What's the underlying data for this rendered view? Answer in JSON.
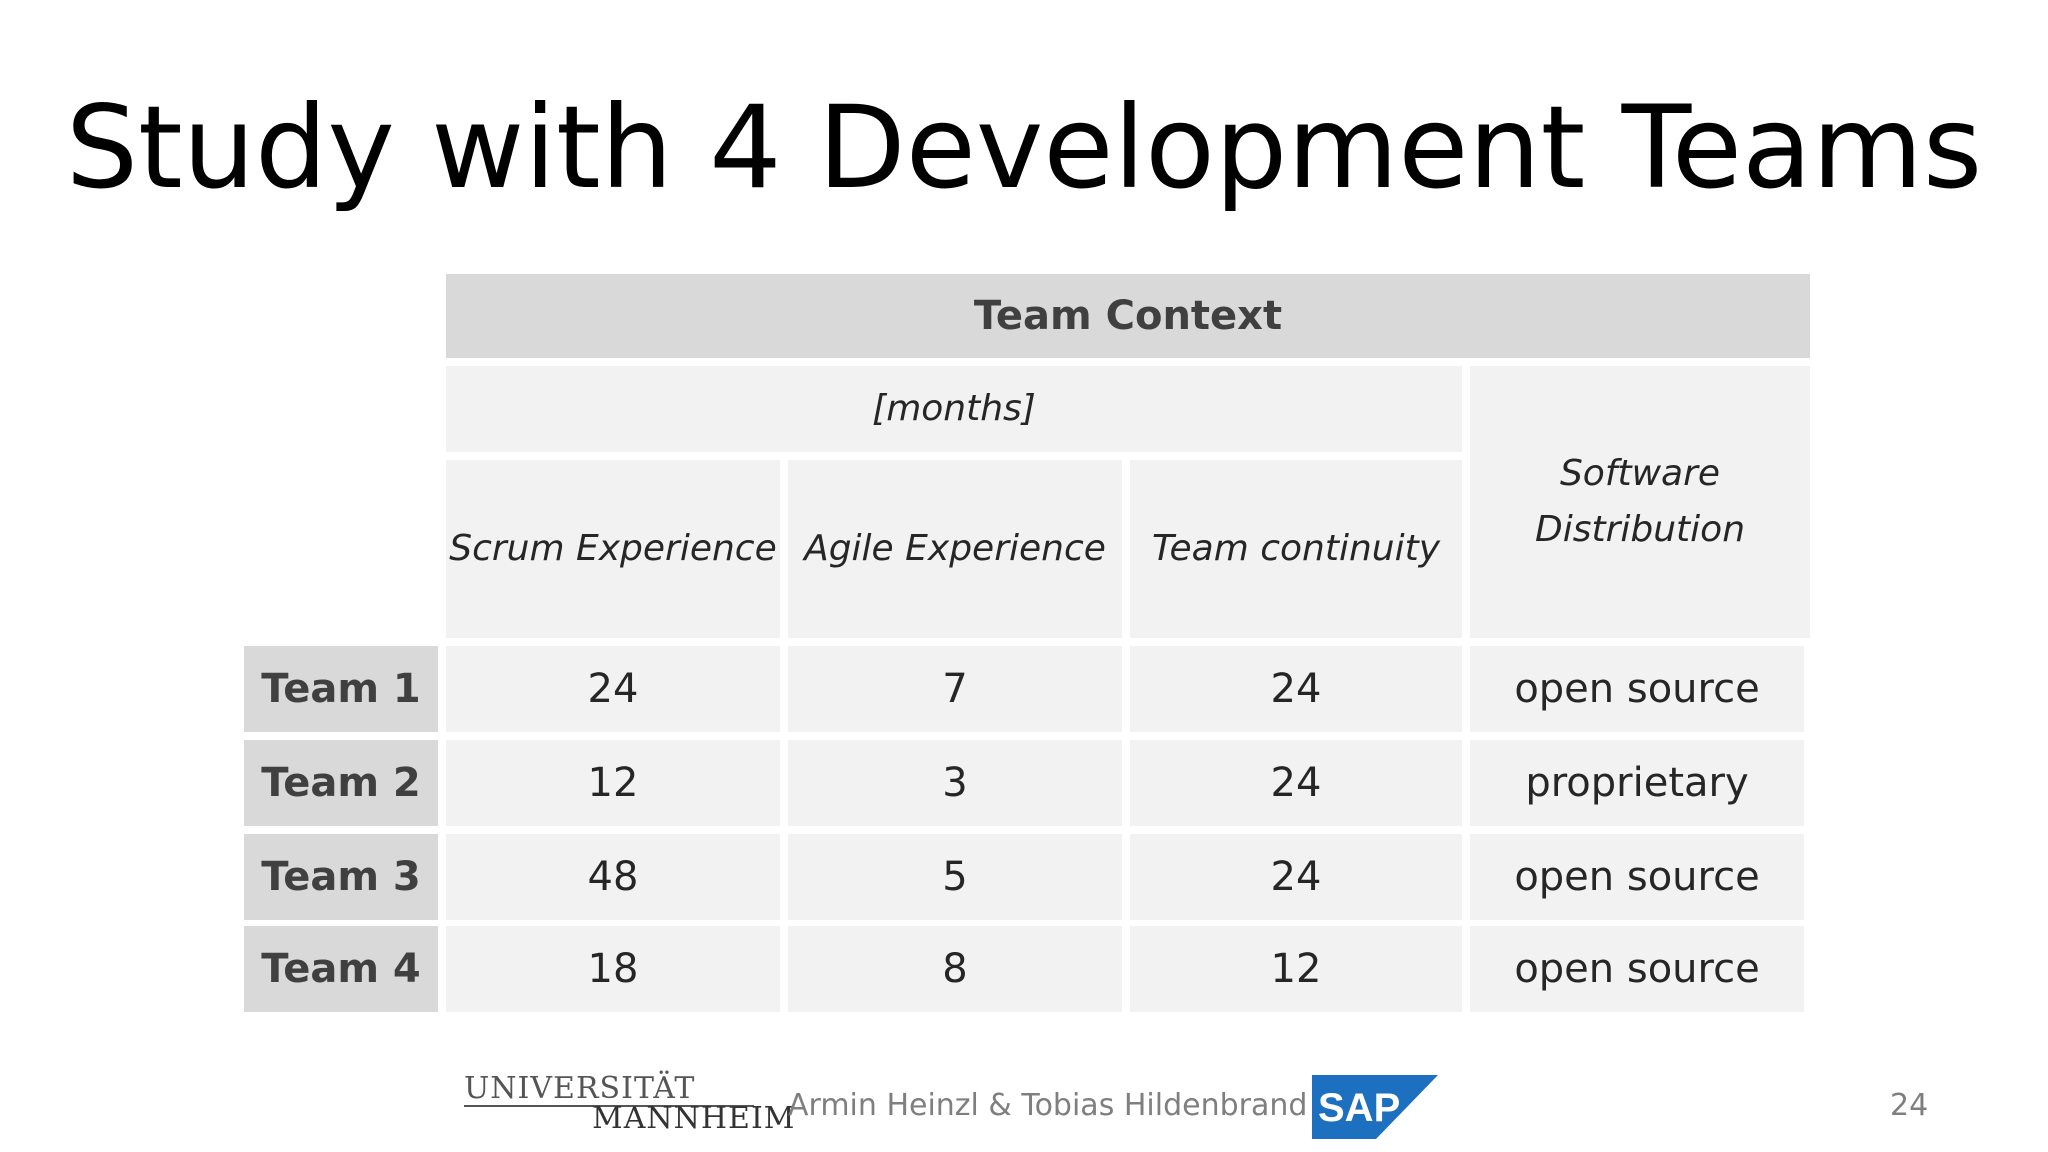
{
  "slide": {
    "title": "Study with 4 Development Teams"
  },
  "table": {
    "group_header": "Team Context",
    "units_header": "[months]",
    "columns": [
      "Scrum Experience",
      "Agile Experience",
      "Team continuity",
      "Software Distribution"
    ],
    "rows": [
      {
        "team": "Team 1",
        "scrum": "24",
        "agile": "7",
        "continuity": "24",
        "distribution": "open source"
      },
      {
        "team": "Team 2",
        "scrum": "12",
        "agile": "3",
        "continuity": "24",
        "distribution": "proprietary"
      },
      {
        "team": "Team 3",
        "scrum": "48",
        "agile": "5",
        "continuity": "24",
        "distribution": "open source"
      },
      {
        "team": "Team 4",
        "scrum": "18",
        "agile": "8",
        "continuity": "12",
        "distribution": "open source"
      }
    ]
  },
  "footer": {
    "university_line1": "UNIVERSITÄT",
    "university_line2": "MANNHEIM",
    "authors": "Armin Heinzl & Tobias Hildenbrand",
    "sap_logo_text": "SAP",
    "page_number": "24",
    "colors": {
      "sap_blue": "#1d6fc0",
      "footer_text": "#7f7f7f"
    }
  }
}
